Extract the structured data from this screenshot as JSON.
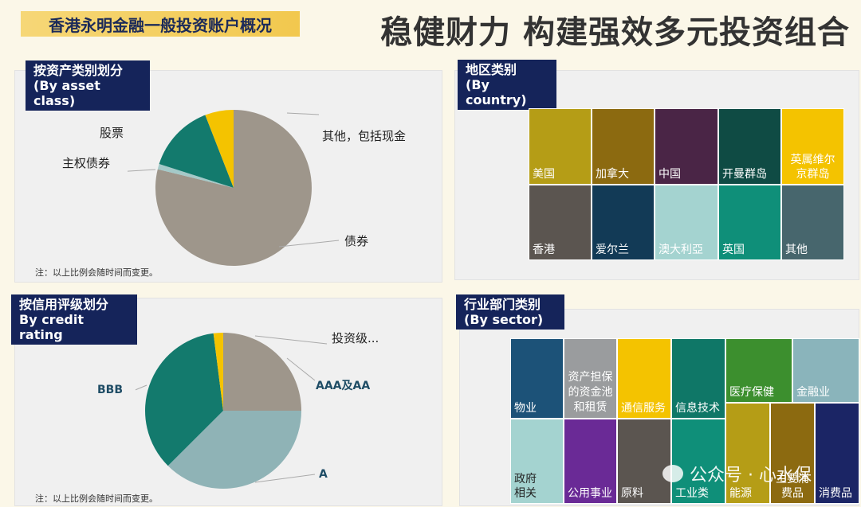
{
  "header": {
    "left_title": "香港永明金融一般投资账户概况",
    "right_title": "稳健财力 构建强效多元投资组合"
  },
  "asset_panel": {
    "tag_line1": "按资产类别划分",
    "tag_line2": "(By asset class)",
    "labels": {
      "stocks": "股票",
      "sovereign": "主权债券",
      "other": "其他，包括现金",
      "bonds": "债券"
    },
    "note": "注：以上比例会随时间而变更。"
  },
  "country_panel": {
    "tag_line1": "地区类别",
    "tag_line2": "(By country)",
    "cells": [
      {
        "label": "美国",
        "color": "#b59d16"
      },
      {
        "label": "加拿大",
        "color": "#8c6a10"
      },
      {
        "label": "中国",
        "color": "#4a2546"
      },
      {
        "label": "开曼群岛",
        "color": "#0f4b44"
      },
      {
        "label": "英属维尔京群岛",
        "color": "#f4c300"
      },
      {
        "label": "香港",
        "color": "#5b5550"
      },
      {
        "label": "爱尔兰",
        "color": "#123a56"
      },
      {
        "label": "澳大利亞",
        "color": "#a4d3d0"
      },
      {
        "label": "英国",
        "color": "#0f8f79"
      },
      {
        "label": "其他",
        "color": "#47666d"
      }
    ]
  },
  "credit_panel": {
    "tag_line1": "按信用评级划分",
    "tag_line2": "By credit rating",
    "labels": {
      "investment": "投资级...",
      "aaa": "AAA及AA",
      "bbb": "BBB",
      "a": "A"
    },
    "note": "注：以上比例会随时间而变更。"
  },
  "sector_panel": {
    "tag_line1": "行业部门类别",
    "tag_line2": "(By sector)",
    "cells": [
      {
        "label": "物业",
        "color": "#1c5278"
      },
      {
        "label": "资产担保的资金池和租赁",
        "color": "#9a9c9e"
      },
      {
        "label": "通信服务",
        "color": "#f4c300"
      },
      {
        "label": "信息技术",
        "color": "#0f7767"
      },
      {
        "label": "医疗保健",
        "color": "#3c8f2e"
      },
      {
        "label": "金融业",
        "color": "#8ab4bb"
      },
      {
        "label": "政府相关",
        "color": "#a4d3d0"
      },
      {
        "label": "公用事业",
        "color": "#6a2a96"
      },
      {
        "label": "原料",
        "color": "#5b5550"
      },
      {
        "label": "工业类",
        "color": "#0f8f79"
      },
      {
        "label": "能源",
        "color": "#b59d16"
      },
      {
        "label": "主要消费品",
        "color": "#8c6a10"
      },
      {
        "label": "消费品",
        "color": "#1b2565"
      }
    ]
  },
  "watermark": {
    "text": "公众号 · 心水保"
  }
}
